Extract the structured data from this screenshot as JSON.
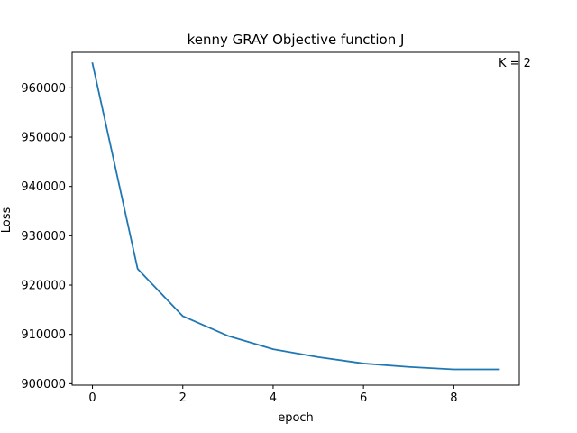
{
  "chart_data": {
    "type": "line",
    "title": "kenny GRAY Objective function J",
    "xlabel": "epoch",
    "ylabel": "Loss",
    "annotation": "K = 2",
    "x": [
      0,
      1,
      2,
      3,
      4,
      5,
      6,
      7,
      8,
      9
    ],
    "series": [
      {
        "values": [
          965000,
          923300,
          913700,
          909700,
          907000,
          905400,
          904100,
          903400,
          902900,
          902900
        ]
      }
    ],
    "xlim": [
      -0.45,
      9.45
    ],
    "ylim": [
      899700,
      967200
    ],
    "x_ticks": [
      0,
      2,
      4,
      6,
      8
    ],
    "y_ticks": [
      900000,
      910000,
      920000,
      930000,
      940000,
      950000,
      960000
    ],
    "x_tick_labels": [
      "0",
      "2",
      "4",
      "6",
      "8"
    ],
    "y_tick_labels": [
      "900000",
      "910000",
      "920000",
      "930000",
      "940000",
      "950000",
      "960000"
    ],
    "grid": false,
    "line_color": "#1f77b4"
  }
}
